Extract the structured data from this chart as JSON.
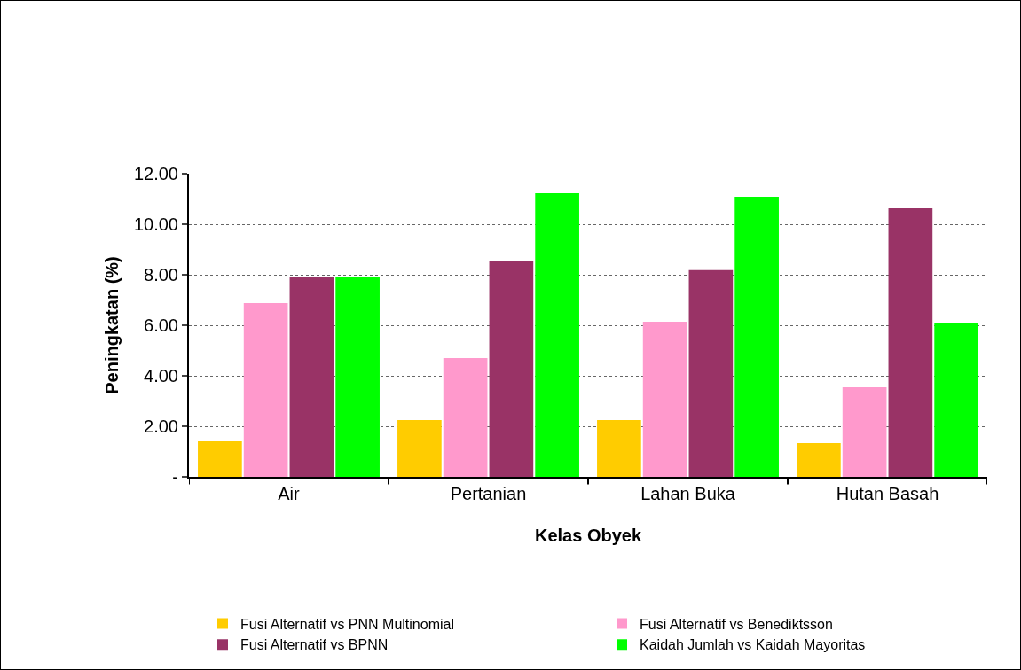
{
  "chart_data": {
    "type": "bar",
    "xlabel": "Kelas Obyek",
    "ylabel": "Peningkatan (%)",
    "categories": [
      "Air",
      "Pertanian",
      "Lahan Buka",
      "Hutan Basah"
    ],
    "series": [
      {
        "name": "Fusi Alternatif vs PNN Multinomial",
        "color": "#ffcc00",
        "values": [
          1.4,
          2.25,
          2.25,
          1.33
        ]
      },
      {
        "name": "Fusi Alternatif vs Benediktsson",
        "color": "#ff99cc",
        "values": [
          6.88,
          4.7,
          6.14,
          3.54
        ]
      },
      {
        "name": "Fusi Alternatif vs BPNN",
        "color": "#993366",
        "values": [
          7.93,
          8.53,
          8.18,
          10.63
        ]
      },
      {
        "name": "Kaidah Jumlah vs Kaidah Mayoritas",
        "color": "#00ff00",
        "values": [
          7.93,
          11.23,
          11.09,
          6.07
        ]
      }
    ],
    "ylim": [
      0,
      12
    ],
    "yticks": [
      {
        "value": 0,
        "label": "-"
      },
      {
        "value": 2,
        "label": "2.00"
      },
      {
        "value": 4,
        "label": "4.00"
      },
      {
        "value": 6,
        "label": "6.00"
      },
      {
        "value": 8,
        "label": "8.00"
      },
      {
        "value": 10,
        "label": "10.00"
      },
      {
        "value": 12,
        "label": "12.00"
      }
    ],
    "grid": "y",
    "legend": "bottom"
  }
}
